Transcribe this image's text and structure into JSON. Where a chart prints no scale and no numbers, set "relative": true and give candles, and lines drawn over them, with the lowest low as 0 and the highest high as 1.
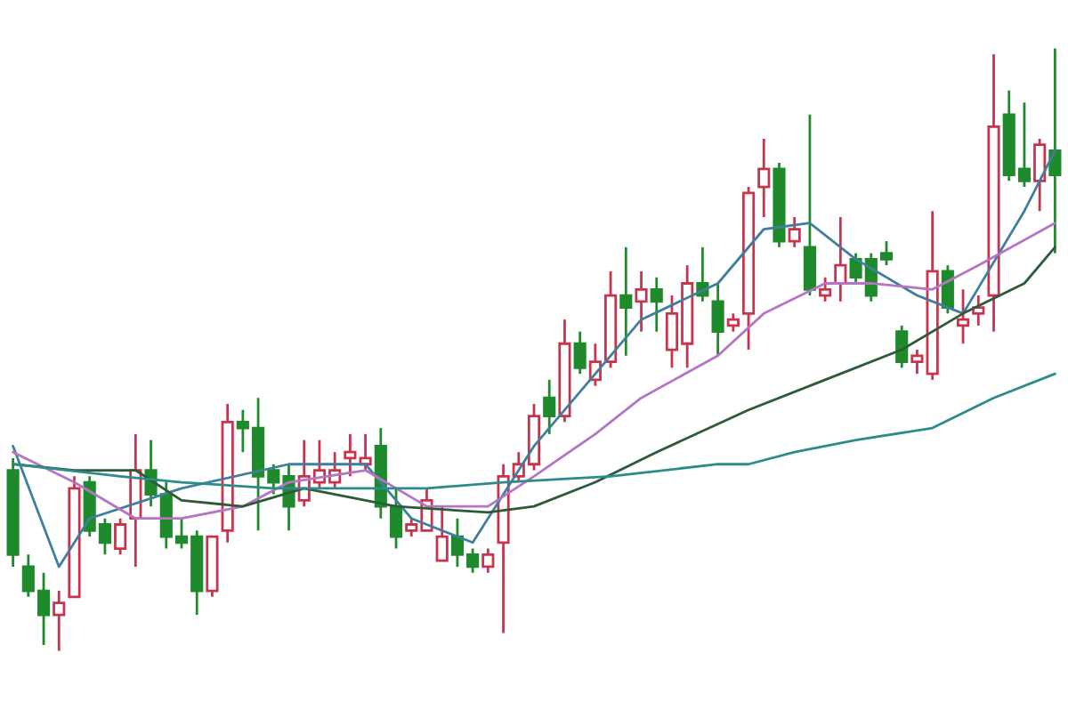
{
  "chart_data": {
    "type": "candlestick",
    "relative": true,
    "categories": [
      null,
      null,
      null,
      null,
      null,
      null,
      null,
      null,
      null,
      null,
      null,
      null,
      null,
      null,
      null,
      null,
      null,
      null,
      null,
      null,
      null,
      null,
      null,
      null,
      null,
      null,
      null,
      null,
      null,
      null,
      null,
      null,
      null,
      null,
      null,
      null,
      null,
      null,
      null,
      null,
      null,
      null,
      null,
      null,
      null,
      null,
      null,
      null,
      null,
      null,
      null,
      null,
      null,
      null,
      null,
      null,
      null,
      null,
      null,
      null,
      null,
      null,
      null,
      null,
      null,
      null,
      null,
      null,
      null
    ],
    "ohlc": [
      [
        0.3,
        0.32,
        0.14,
        0.16
      ],
      [
        0.14,
        0.16,
        0.09,
        0.1
      ],
      [
        0.1,
        0.13,
        0.01,
        0.06
      ],
      [
        0.06,
        0.1,
        0.0,
        0.08
      ],
      [
        0.09,
        0.29,
        0.09,
        0.27
      ],
      [
        0.28,
        0.29,
        0.19,
        0.2
      ],
      [
        0.21,
        0.22,
        0.16,
        0.18
      ],
      [
        0.17,
        0.22,
        0.16,
        0.21
      ],
      [
        0.22,
        0.36,
        0.14,
        0.3
      ],
      [
        0.3,
        0.35,
        0.24,
        0.26
      ],
      [
        0.26,
        0.28,
        0.17,
        0.19
      ],
      [
        0.19,
        0.22,
        0.17,
        0.18
      ],
      [
        0.19,
        0.2,
        0.06,
        0.1
      ],
      [
        0.1,
        0.19,
        0.09,
        0.19
      ],
      [
        0.2,
        0.41,
        0.18,
        0.38
      ],
      [
        0.38,
        0.4,
        0.33,
        0.37
      ],
      [
        0.37,
        0.42,
        0.2,
        0.29
      ],
      [
        0.3,
        0.31,
        0.26,
        0.28
      ],
      [
        0.29,
        0.31,
        0.2,
        0.24
      ],
      [
        0.25,
        0.35,
        0.24,
        0.29
      ],
      [
        0.28,
        0.35,
        0.27,
        0.3
      ],
      [
        0.28,
        0.33,
        0.27,
        0.3
      ],
      [
        0.32,
        0.36,
        0.29,
        0.33
      ],
      [
        0.31,
        0.36,
        0.3,
        0.32
      ],
      [
        0.34,
        0.37,
        0.22,
        0.24
      ],
      [
        0.24,
        0.27,
        0.17,
        0.19
      ],
      [
        0.2,
        0.22,
        0.19,
        0.21
      ],
      [
        0.2,
        0.27,
        0.2,
        0.25
      ],
      [
        0.15,
        0.24,
        0.15,
        0.19
      ],
      [
        0.19,
        0.22,
        0.14,
        0.16
      ],
      [
        0.16,
        0.17,
        0.13,
        0.14
      ],
      [
        0.14,
        0.17,
        0.13,
        0.16
      ],
      [
        0.18,
        0.31,
        0.03,
        0.29
      ],
      [
        0.29,
        0.33,
        0.28,
        0.31
      ],
      [
        0.31,
        0.41,
        0.3,
        0.39
      ],
      [
        0.42,
        0.45,
        0.36,
        0.39
      ],
      [
        0.39,
        0.55,
        0.38,
        0.51
      ],
      [
        0.51,
        0.53,
        0.46,
        0.47
      ],
      [
        0.45,
        0.51,
        0.44,
        0.48
      ],
      [
        0.48,
        0.63,
        0.47,
        0.59
      ],
      [
        0.59,
        0.67,
        0.49,
        0.57
      ],
      [
        0.58,
        0.63,
        0.53,
        0.6
      ],
      [
        0.6,
        0.62,
        0.53,
        0.58
      ],
      [
        0.5,
        0.59,
        0.47,
        0.56
      ],
      [
        0.51,
        0.64,
        0.47,
        0.61
      ],
      [
        0.61,
        0.67,
        0.58,
        0.59
      ],
      [
        0.58,
        0.61,
        0.49,
        0.53
      ],
      [
        0.54,
        0.56,
        0.53,
        0.55
      ],
      [
        0.56,
        0.77,
        0.5,
        0.76
      ],
      [
        0.77,
        0.85,
        0.72,
        0.8
      ],
      [
        0.8,
        0.81,
        0.67,
        0.68
      ],
      [
        0.68,
        0.72,
        0.67,
        0.7
      ],
      [
        0.67,
        0.89,
        0.59,
        0.6
      ],
      [
        0.59,
        0.62,
        0.58,
        0.6
      ],
      [
        0.61,
        0.72,
        0.58,
        0.64
      ],
      [
        0.65,
        0.66,
        0.61,
        0.62
      ],
      [
        0.65,
        0.66,
        0.58,
        0.59
      ],
      [
        0.66,
        0.68,
        0.64,
        0.65
      ],
      [
        0.53,
        0.54,
        0.47,
        0.48
      ],
      [
        0.48,
        0.5,
        0.46,
        0.49
      ],
      [
        0.46,
        0.73,
        0.45,
        0.63
      ],
      [
        0.63,
        0.64,
        0.56,
        0.57
      ],
      [
        0.54,
        0.6,
        0.51,
        0.55
      ],
      [
        0.56,
        0.59,
        0.54,
        0.57
      ],
      [
        0.59,
        0.99,
        0.53,
        0.87
      ],
      [
        0.89,
        0.93,
        0.78,
        0.79
      ],
      [
        0.8,
        0.91,
        0.77,
        0.78
      ],
      [
        0.78,
        0.85,
        0.73,
        0.84
      ],
      [
        0.83,
        1.0,
        0.66,
        0.79
      ]
    ],
    "colors": [
      "#1e8a2c",
      "#1e8a2c",
      "#1e8a2c",
      "#c8344e",
      "#c8344e",
      "#1e8a2c",
      "#1e8a2c",
      "#c8344e",
      "#c8344e",
      "#1e8a2c",
      "#1e8a2c",
      "#1e8a2c",
      "#1e8a2c",
      "#c8344e",
      "#c8344e",
      "#1e8a2c",
      "#1e8a2c",
      "#1e8a2c",
      "#1e8a2c",
      "#c8344e",
      "#c8344e",
      "#c8344e",
      "#c8344e",
      "#c8344e",
      "#1e8a2c",
      "#1e8a2c",
      "#c8344e",
      "#c8344e",
      "#c8344e",
      "#1e8a2c",
      "#1e8a2c",
      "#c8344e",
      "#c8344e",
      "#c8344e",
      "#c8344e",
      "#1e8a2c",
      "#c8344e",
      "#1e8a2c",
      "#c8344e",
      "#c8344e",
      "#1e8a2c",
      "#c8344e",
      "#1e8a2c",
      "#c8344e",
      "#c8344e",
      "#1e8a2c",
      "#1e8a2c",
      "#c8344e",
      "#c8344e",
      "#c8344e",
      "#1e8a2c",
      "#c8344e",
      "#1e8a2c",
      "#c8344e",
      "#c8344e",
      "#1e8a2c",
      "#1e8a2c",
      "#1e8a2c",
      "#1e8a2c",
      "#c8344e",
      "#c8344e",
      "#1e8a2c",
      "#c8344e",
      "#c8344e",
      "#c8344e",
      "#1e8a2c",
      "#1e8a2c",
      "#c8344e",
      "#1e8a2c"
    ],
    "series": [
      {
        "type": "line",
        "color": "#3f7f9e",
        "values": [
          0.34,
          null,
          null,
          0.14,
          null,
          0.22,
          null,
          null,
          null,
          null,
          null,
          0.27,
          null,
          null,
          null,
          null,
          null,
          null,
          0.31,
          null,
          null,
          null,
          null,
          0.31,
          null,
          null,
          0.22,
          null,
          null,
          null,
          0.18,
          null,
          null,
          null,
          0.34,
          null,
          null,
          null,
          0.46,
          null,
          null,
          0.55,
          null,
          null,
          null,
          null,
          0.61,
          null,
          null,
          0.7,
          null,
          null,
          0.71,
          null,
          null,
          0.65,
          null,
          null,
          null,
          0.59,
          null,
          null,
          0.56,
          null,
          null,
          null,
          0.73,
          null,
          0.83
        ]
      },
      {
        "type": "line",
        "color": "#b574c4",
        "values": [
          0.33,
          null,
          null,
          null,
          0.28,
          null,
          null,
          null,
          0.22,
          null,
          null,
          0.22,
          null,
          null,
          null,
          0.24,
          null,
          null,
          0.28,
          null,
          null,
          null,
          null,
          0.3,
          null,
          null,
          null,
          0.24,
          null,
          null,
          null,
          0.24,
          null,
          null,
          0.29,
          null,
          null,
          null,
          0.36,
          null,
          null,
          0.42,
          null,
          null,
          null,
          null,
          0.49,
          null,
          null,
          0.56,
          null,
          null,
          null,
          0.61,
          null,
          null,
          0.61,
          null,
          null,
          null,
          0.6,
          null,
          null,
          0.64,
          null,
          null,
          null,
          null,
          0.71
        ]
      },
      {
        "type": "line",
        "color": "#2f5a3a",
        "values": [
          0.31,
          null,
          null,
          null,
          0.3,
          null,
          null,
          null,
          0.3,
          null,
          null,
          0.25,
          null,
          null,
          null,
          0.24,
          null,
          null,
          null,
          0.27,
          null,
          null,
          null,
          null,
          null,
          0.24,
          null,
          null,
          null,
          null,
          null,
          0.23,
          null,
          null,
          0.24,
          null,
          null,
          null,
          0.28,
          null,
          null,
          null,
          0.33,
          null,
          null,
          null,
          null,
          null,
          0.4,
          null,
          null,
          null,
          null,
          0.45,
          null,
          null,
          null,
          null,
          0.5,
          null,
          null,
          null,
          0.56,
          null,
          null,
          null,
          0.61,
          null,
          0.67
        ]
      },
      {
        "type": "line",
        "color": "#2e8b8b",
        "values": [
          0.31,
          null,
          null,
          null,
          null,
          null,
          null,
          0.29,
          null,
          null,
          null,
          0.28,
          null,
          null,
          null,
          null,
          null,
          0.27,
          null,
          null,
          null,
          null,
          null,
          0.27,
          null,
          null,
          null,
          0.27,
          null,
          null,
          null,
          null,
          0.28,
          null,
          null,
          null,
          null,
          null,
          null,
          0.29,
          null,
          null,
          null,
          null,
          null,
          null,
          0.31,
          null,
          0.31,
          null,
          null,
          0.33,
          null,
          null,
          null,
          0.35,
          null,
          null,
          null,
          null,
          0.37,
          null,
          null,
          null,
          0.42,
          null,
          null,
          null,
          0.46
        ]
      }
    ]
  }
}
